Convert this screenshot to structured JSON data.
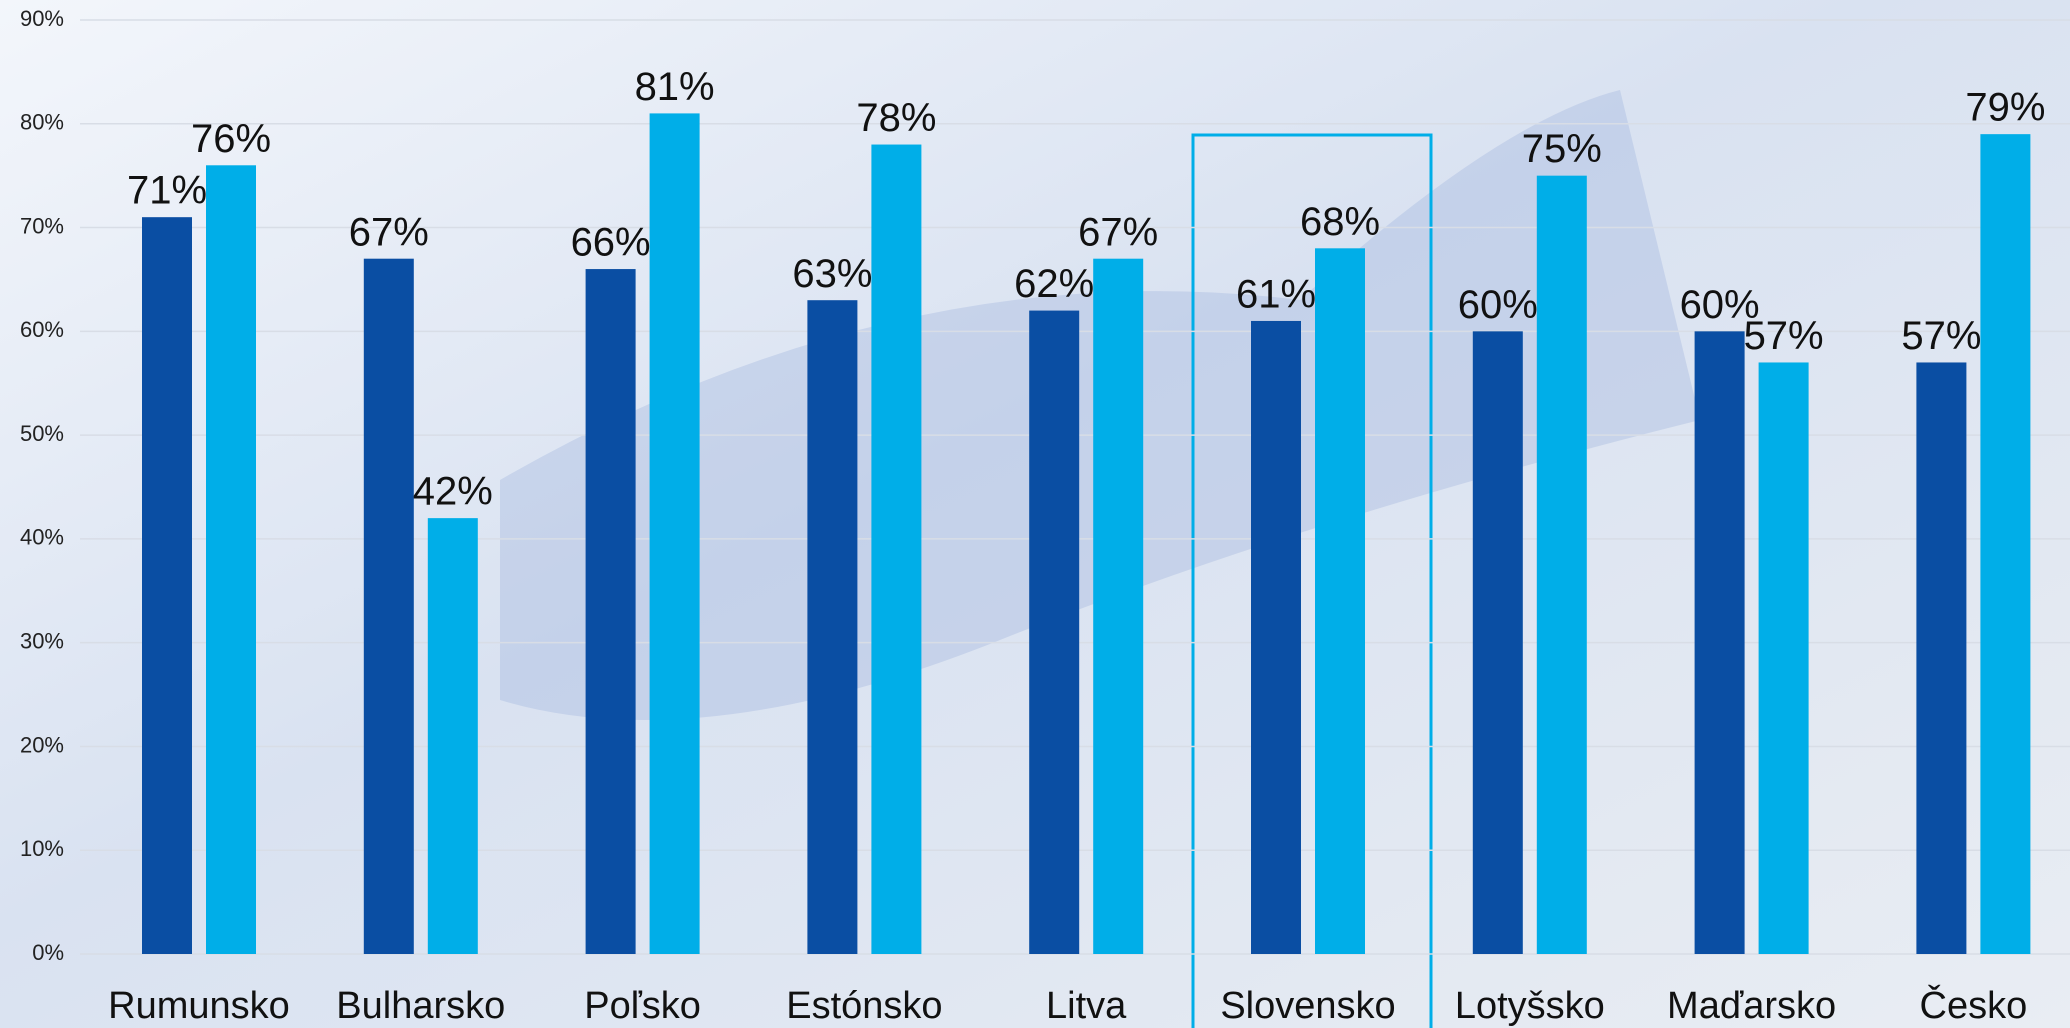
{
  "chart_data": {
    "type": "bar",
    "categories": [
      "Rumunsko",
      "Bulharsko",
      "Poľsko",
      "Estónsko",
      "Litva",
      "Slovensko",
      "Lotyšsko",
      "Maďarsko",
      "Česko"
    ],
    "series": [
      {
        "color": "#0a4ea3",
        "values": [
          71,
          67,
          66,
          63,
          62,
          61,
          60,
          60,
          57
        ],
        "value_labels": [
          "71%",
          "67%",
          "66%",
          "63%",
          "62%",
          "61%",
          "60%",
          "60%",
          "57%"
        ]
      },
      {
        "color": "#00aee8",
        "values": [
          76,
          42,
          81,
          78,
          67,
          68,
          75,
          57,
          79
        ],
        "value_labels": [
          "76%",
          "42%",
          "81%",
          "78%",
          "67%",
          "68%",
          "75%",
          "57%",
          "79%"
        ]
      }
    ],
    "ylim": [
      0,
      90
    ],
    "yticks": [
      {
        "value": 0,
        "label": "0%"
      },
      {
        "value": 10,
        "label": "10%"
      },
      {
        "value": 20,
        "label": "20%"
      },
      {
        "value": 30,
        "label": "30%"
      },
      {
        "value": 40,
        "label": "40%"
      },
      {
        "value": 50,
        "label": "50%"
      },
      {
        "value": 60,
        "label": "60%"
      },
      {
        "value": 70,
        "label": "70%"
      },
      {
        "value": 80,
        "label": "80%"
      },
      {
        "value": 90,
        "label": "90%"
      }
    ],
    "grid": true
  }
}
